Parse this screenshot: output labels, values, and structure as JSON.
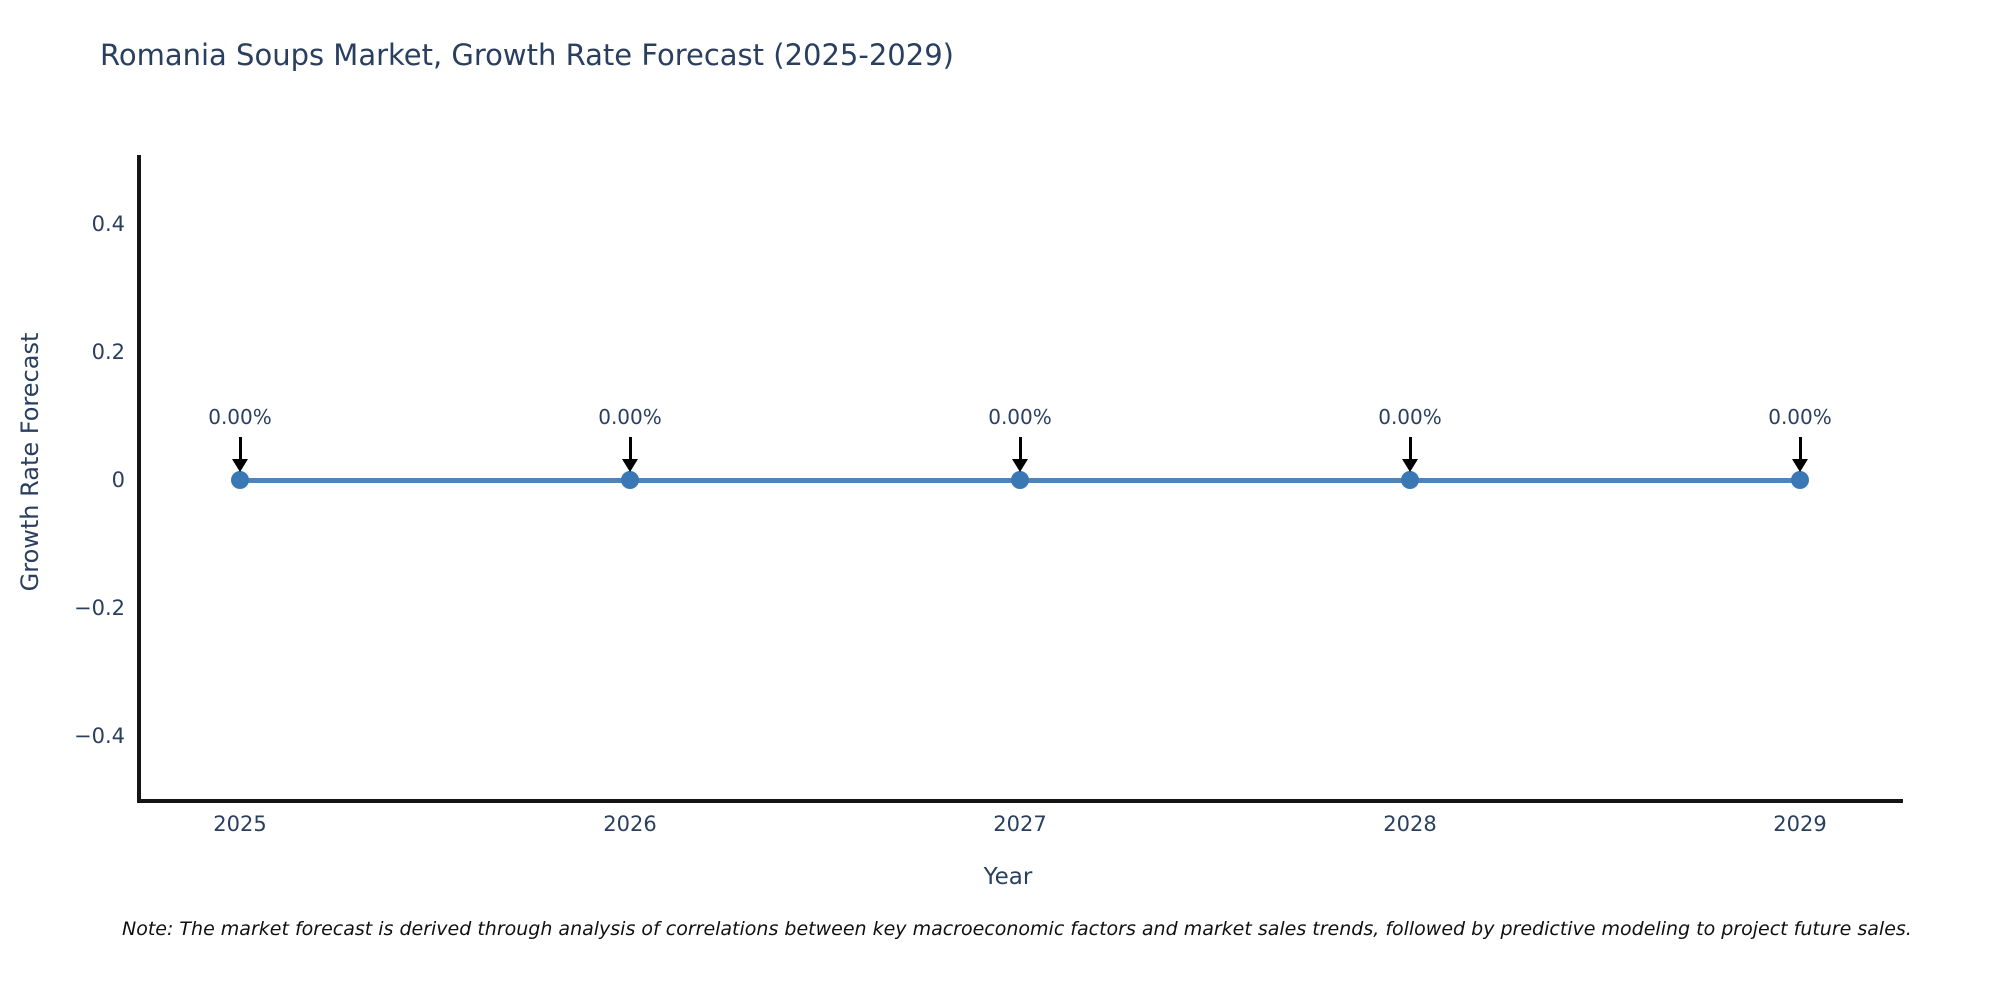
{
  "title": "Romania Soups Market, Growth Rate Forecast (2025-2029)",
  "chart_data": {
    "type": "line",
    "x": [
      "2025",
      "2026",
      "2027",
      "2028",
      "2029"
    ],
    "series": [
      {
        "name": "Growth Rate Forecast",
        "values": [
          0,
          0,
          0,
          0,
          0
        ]
      }
    ],
    "point_labels": [
      "0.00%",
      "0.00%",
      "0.00%",
      "0.00%",
      "0.00%"
    ],
    "title": "Romania Soups Market, Growth Rate Forecast (2025-2029)",
    "xlabel": "Year",
    "ylabel": "Growth Rate Forecast",
    "ylim": [
      -0.5,
      0.5
    ],
    "ytick_values": [
      0.4,
      0.2,
      0,
      -0.2,
      -0.4
    ],
    "ytick_labels": [
      "0.4",
      "0.2",
      "0",
      "−0.2",
      "−0.4"
    ],
    "grid": false,
    "legend": "none",
    "colors": {
      "line": "#4d85bb",
      "marker": "#3a78b5",
      "annotation_arrow": "#000000",
      "text": "#2a3f5f",
      "axis": "#151515",
      "background": "#ffffff"
    }
  },
  "note": {
    "text": "Note: The market forecast is derived through analysis of correlations between key macroeconomic factors and market sales trends, followed by predictive modeling to project future sales."
  }
}
